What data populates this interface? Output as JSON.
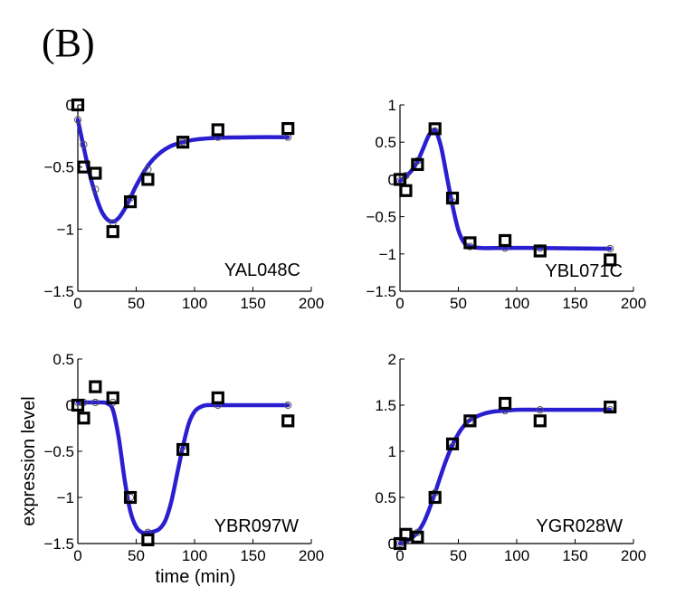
{
  "panel_label": "(B)",
  "shared_ylabel": "expression level",
  "shared_xlabel": "time (min)",
  "colors": {
    "fit": "#2a1fd0",
    "marker": "#000000",
    "circle": "#555555"
  },
  "chart_data": [
    {
      "type": "line",
      "gene": "YAL048C",
      "xlim": [
        0,
        200
      ],
      "ylim": [
        -1.5,
        0
      ],
      "xticks": [
        0,
        50,
        100,
        150,
        200
      ],
      "xtick_labels": [
        "0",
        "50",
        "100",
        "150",
        "200"
      ],
      "yticks": [
        -1.5,
        -1,
        -0.5,
        0
      ],
      "ytick_labels": [
        "−1.5",
        "−1",
        "−0.5",
        "0"
      ],
      "series": [
        {
          "kind": "measured",
          "marker": "square",
          "x": [
            0,
            5,
            15,
            30,
            45,
            60,
            90,
            120,
            180
          ],
          "y": [
            0.0,
            -0.5,
            -0.55,
            -1.02,
            -0.78,
            -0.6,
            -0.3,
            -0.2,
            -0.19
          ]
        },
        {
          "kind": "model",
          "marker": "circle",
          "x": [
            0,
            5,
            15,
            30,
            45,
            60,
            90,
            120,
            180
          ],
          "y": [
            -0.12,
            -0.32,
            -0.68,
            -0.95,
            -0.75,
            -0.52,
            -0.3,
            -0.26,
            -0.26
          ]
        },
        {
          "kind": "fit",
          "x": [
            0,
            5,
            10,
            15,
            20,
            25,
            30,
            35,
            40,
            45,
            50,
            60,
            70,
            80,
            90,
            100,
            120,
            150,
            180
          ],
          "y": [
            -0.12,
            -0.34,
            -0.55,
            -0.72,
            -0.85,
            -0.92,
            -0.94,
            -0.91,
            -0.84,
            -0.75,
            -0.65,
            -0.49,
            -0.39,
            -0.33,
            -0.3,
            -0.28,
            -0.265,
            -0.26,
            -0.26
          ]
        }
      ]
    },
    {
      "type": "line",
      "gene": "YBL071C",
      "xlim": [
        0,
        200
      ],
      "ylim": [
        -1.5,
        1
      ],
      "xticks": [
        0,
        50,
        100,
        150,
        200
      ],
      "xtick_labels": [
        "0",
        "50",
        "100",
        "150",
        "200"
      ],
      "yticks": [
        -1.5,
        -1,
        -0.5,
        0,
        0.5,
        1
      ],
      "ytick_labels": [
        "−1.5",
        "−1",
        "−0.5",
        "0",
        "0.5",
        "1"
      ],
      "series": [
        {
          "kind": "measured",
          "marker": "square",
          "x": [
            0,
            5,
            15,
            30,
            45,
            60,
            90,
            120,
            180
          ],
          "y": [
            0.0,
            -0.15,
            0.2,
            0.68,
            -0.25,
            -0.85,
            -0.82,
            -0.96,
            -1.08
          ]
        },
        {
          "kind": "model",
          "marker": "circle",
          "x": [
            0,
            5,
            15,
            30,
            45,
            60,
            90,
            120,
            180
          ],
          "y": [
            -0.02,
            0.05,
            0.25,
            0.65,
            -0.3,
            -0.9,
            -0.92,
            -0.92,
            -0.93
          ]
        },
        {
          "kind": "fit",
          "x": [
            0,
            5,
            10,
            15,
            20,
            25,
            30,
            35,
            40,
            45,
            50,
            55,
            60,
            70,
            90,
            120,
            180
          ],
          "y": [
            -0.02,
            0.04,
            0.12,
            0.24,
            0.42,
            0.6,
            0.66,
            0.45,
            0.05,
            -0.35,
            -0.68,
            -0.85,
            -0.9,
            -0.92,
            -0.92,
            -0.92,
            -0.93
          ]
        }
      ]
    },
    {
      "type": "line",
      "gene": "YBR097W",
      "xlim": [
        0,
        200
      ],
      "ylim": [
        -1.5,
        0.5
      ],
      "xticks": [
        0,
        50,
        100,
        150,
        200
      ],
      "xtick_labels": [
        "0",
        "50",
        "100",
        "150",
        "200"
      ],
      "yticks": [
        -1.5,
        -1,
        -0.5,
        0,
        0.5
      ],
      "ytick_labels": [
        "−1.5",
        "−1",
        "−0.5",
        "0",
        "0.5"
      ],
      "series": [
        {
          "kind": "measured",
          "marker": "square",
          "x": [
            0,
            5,
            15,
            30,
            45,
            60,
            90,
            120,
            180
          ],
          "y": [
            0.0,
            -0.14,
            0.2,
            0.08,
            -1.0,
            -1.46,
            -0.48,
            0.08,
            -0.17
          ]
        },
        {
          "kind": "model",
          "marker": "circle",
          "x": [
            0,
            5,
            15,
            30,
            45,
            60,
            90,
            120,
            180
          ],
          "y": [
            0.03,
            0.03,
            0.03,
            0.03,
            -1.0,
            -1.38,
            -0.45,
            0.0,
            0.0
          ]
        },
        {
          "kind": "fit",
          "x": [
            0,
            10,
            20,
            25,
            30,
            35,
            40,
            45,
            50,
            55,
            60,
            65,
            70,
            75,
            80,
            85,
            90,
            95,
            100,
            105,
            110,
            120,
            150,
            180
          ],
          "y": [
            0.03,
            0.03,
            0.03,
            0.02,
            -0.05,
            -0.35,
            -0.8,
            -1.15,
            -1.32,
            -1.38,
            -1.38,
            -1.37,
            -1.34,
            -1.25,
            -1.05,
            -0.75,
            -0.45,
            -0.2,
            -0.07,
            -0.02,
            0.0,
            0.0,
            0.0,
            0.0
          ]
        }
      ]
    },
    {
      "type": "line",
      "gene": "YGR028W",
      "xlim": [
        0,
        200
      ],
      "ylim": [
        0,
        2
      ],
      "xticks": [
        0,
        50,
        100,
        150,
        200
      ],
      "xtick_labels": [
        "0",
        "50",
        "100",
        "150",
        "200"
      ],
      "yticks": [
        0,
        0.5,
        1,
        1.5,
        2
      ],
      "ytick_labels": [
        "0",
        "0.5",
        "1",
        "1.5",
        "2"
      ],
      "series": [
        {
          "kind": "measured",
          "marker": "square",
          "x": [
            0,
            5,
            15,
            30,
            45,
            60,
            90,
            120,
            180
          ],
          "y": [
            0.0,
            0.1,
            0.07,
            0.5,
            1.08,
            1.33,
            1.52,
            1.33,
            1.48
          ]
        },
        {
          "kind": "model",
          "marker": "circle",
          "x": [
            0,
            5,
            15,
            30,
            45,
            60,
            90,
            120,
            180
          ],
          "y": [
            0.0,
            0.03,
            0.12,
            0.55,
            1.05,
            1.32,
            1.44,
            1.45,
            1.45
          ]
        },
        {
          "kind": "fit",
          "x": [
            0,
            5,
            10,
            15,
            20,
            25,
            30,
            35,
            40,
            45,
            50,
            55,
            60,
            70,
            80,
            90,
            100,
            120,
            150,
            180
          ],
          "y": [
            0.0,
            0.02,
            0.06,
            0.12,
            0.22,
            0.37,
            0.55,
            0.74,
            0.92,
            1.07,
            1.19,
            1.28,
            1.34,
            1.4,
            1.43,
            1.44,
            1.45,
            1.45,
            1.45,
            1.45
          ]
        }
      ]
    }
  ]
}
